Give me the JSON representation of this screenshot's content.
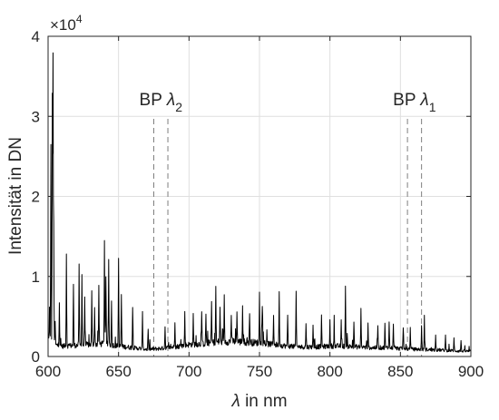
{
  "chart_data": {
    "type": "line",
    "xlabel_symbol": "λ",
    "xlabel_rest": " in nm",
    "ylabel": "Intensität in DN",
    "xlim": [
      600,
      900
    ],
    "ylim": [
      0,
      40000
    ],
    "x_ticks": [
      "600",
      "650",
      "700",
      "750",
      "800",
      "850",
      "900"
    ],
    "y_ticks": [
      "0",
      "1",
      "2",
      "3",
      "4"
    ],
    "y_exponent_prefix": "×10",
    "y_exponent_power": "4",
    "grid": true,
    "colors": {
      "line": "#000000",
      "grid": "#dfdfdf",
      "marker": "#7f7f7f",
      "axis": "#262626"
    },
    "annotations": [
      {
        "text": "BP ",
        "symbol": "λ",
        "sub": "2",
        "x_center": 680,
        "markers": [
          675,
          685
        ]
      },
      {
        "text": "BP ",
        "symbol": "λ",
        "sub": "1",
        "x_center": 860,
        "markers": [
          855,
          865
        ]
      }
    ],
    "spectrum": {
      "baseline": [
        [
          600,
          2200
        ],
        [
          603,
          1500
        ],
        [
          610,
          1300
        ],
        [
          620,
          1400
        ],
        [
          640,
          1600
        ],
        [
          650,
          1300
        ],
        [
          660,
          1100
        ],
        [
          670,
          900
        ],
        [
          680,
          1000
        ],
        [
          690,
          1200
        ],
        [
          700,
          1500
        ],
        [
          710,
          1600
        ],
        [
          720,
          1800
        ],
        [
          730,
          1900
        ],
        [
          740,
          1800
        ],
        [
          750,
          1700
        ],
        [
          760,
          1500
        ],
        [
          770,
          1300
        ],
        [
          780,
          1200
        ],
        [
          790,
          1200
        ],
        [
          800,
          1300
        ],
        [
          810,
          1300
        ],
        [
          820,
          1200
        ],
        [
          830,
          1100
        ],
        [
          840,
          1100
        ],
        [
          850,
          1000
        ],
        [
          860,
          900
        ],
        [
          870,
          850
        ],
        [
          880,
          800
        ],
        [
          890,
          700
        ],
        [
          900,
          650
        ]
      ],
      "peaks": [
        [
          601,
          4000
        ],
        [
          602,
          25000
        ],
        [
          603,
          31000
        ],
        [
          603.5,
          35800
        ],
        [
          604,
          15000
        ],
        [
          605,
          3000
        ],
        [
          608,
          5500
        ],
        [
          613,
          11500
        ],
        [
          618,
          7500
        ],
        [
          622,
          9800
        ],
        [
          624,
          8800
        ],
        [
          626,
          5500
        ],
        [
          631,
          6500
        ],
        [
          633,
          4500
        ],
        [
          636,
          7200
        ],
        [
          640,
          13000
        ],
        [
          641,
          8000
        ],
        [
          643,
          10500
        ],
        [
          645,
          5500
        ],
        [
          650,
          11000
        ],
        [
          652,
          6500
        ],
        [
          660,
          5000
        ],
        [
          667,
          4500
        ],
        [
          671,
          2500
        ],
        [
          683,
          2800
        ],
        [
          690,
          3300
        ],
        [
          697,
          4000
        ],
        [
          703,
          3500
        ],
        [
          709,
          4200
        ],
        [
          712,
          3800
        ],
        [
          716,
          5000
        ],
        [
          719,
          7000
        ],
        [
          722,
          4500
        ],
        [
          725,
          5500
        ],
        [
          730,
          3500
        ],
        [
          734,
          4000
        ],
        [
          738,
          4500
        ],
        [
          743,
          3800
        ],
        [
          750,
          6500
        ],
        [
          752,
          5000
        ],
        [
          760,
          3800
        ],
        [
          764,
          7000
        ],
        [
          770,
          4000
        ],
        [
          776,
          6800
        ],
        [
          783,
          3000
        ],
        [
          788,
          2800
        ],
        [
          794,
          4000
        ],
        [
          800,
          3000
        ],
        [
          803,
          2700
        ],
        [
          808,
          3000
        ],
        [
          811,
          7800
        ],
        [
          817,
          3200
        ],
        [
          822,
          4500
        ],
        [
          827,
          2800
        ],
        [
          834,
          3000
        ],
        [
          839,
          3000
        ],
        [
          842,
          3500
        ],
        [
          845,
          3200
        ],
        [
          852,
          2800
        ],
        [
          857,
          2500
        ],
        [
          865,
          3000
        ],
        [
          867,
          3500
        ],
        [
          875,
          2000
        ],
        [
          882,
          1800
        ],
        [
          888,
          1500
        ],
        [
          893,
          1300
        ]
      ]
    }
  }
}
